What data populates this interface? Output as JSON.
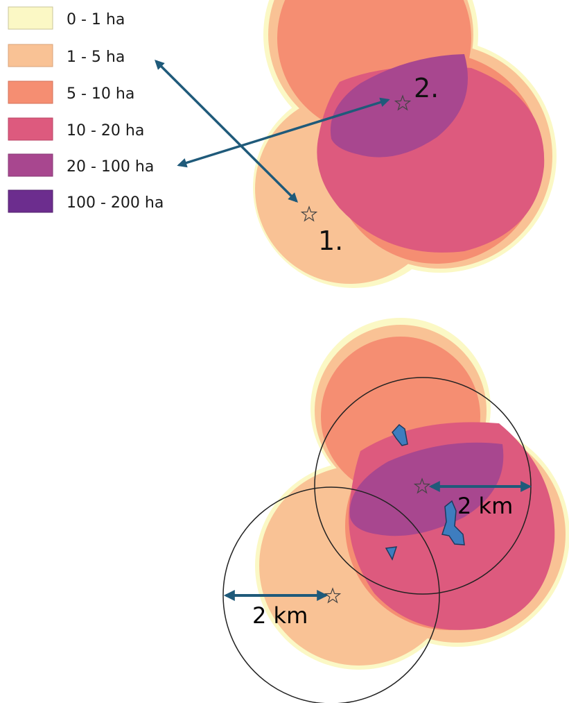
{
  "legend": {
    "items": [
      {
        "label": "0 - 1 ha",
        "color": "#fbf8c5"
      },
      {
        "label": "1 - 5 ha",
        "color": "#f9c295"
      },
      {
        "label": "5 - 10 ha",
        "color": "#f58e72"
      },
      {
        "label": "10 - 20 ha",
        "color": "#dd5a7e"
      },
      {
        "label": "20 - 100 ha",
        "color": "#a8478f"
      },
      {
        "label": "100 - 200 ha",
        "color": "#6c2d8e"
      }
    ]
  },
  "top_map": {
    "site_labels": [
      "1.",
      "2."
    ]
  },
  "bottom_map": {
    "scale_labels": [
      "2 km",
      "2 km"
    ]
  },
  "colors": {
    "arrow": "#1f5a7a",
    "wetland": "#3e7dbf",
    "buffer_ring": "#222222"
  }
}
